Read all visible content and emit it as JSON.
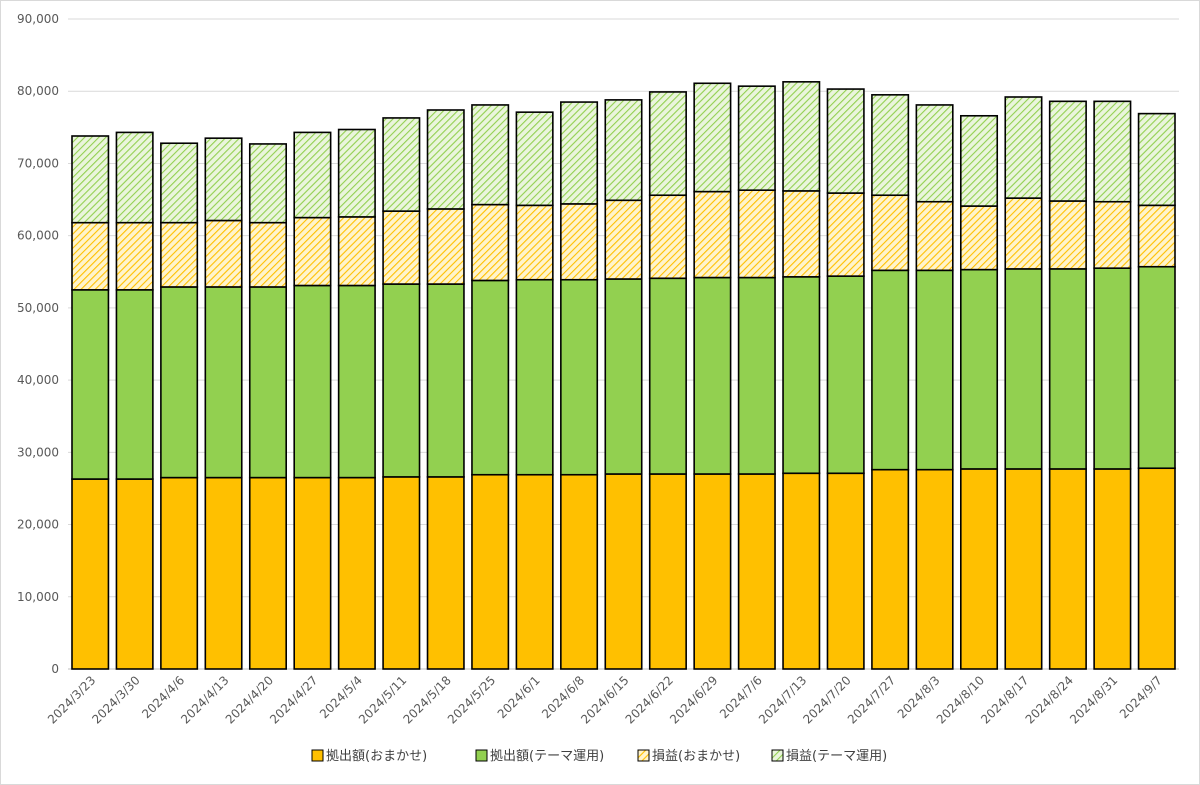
{
  "chart_data": {
    "type": "bar",
    "stacked": true,
    "title": "",
    "xlabel": "",
    "ylabel": "",
    "ylim": [
      0,
      90000
    ],
    "yticks": [
      0,
      10000,
      20000,
      30000,
      40000,
      50000,
      60000,
      70000,
      80000,
      90000
    ],
    "ytick_labels": [
      "0",
      "10,000",
      "20,000",
      "30,000",
      "40,000",
      "50,000",
      "60,000",
      "70,000",
      "80,000",
      "90,000"
    ],
    "grid": true,
    "legend_position": "bottom",
    "categories": [
      "2024/3/23",
      "2024/3/30",
      "2024/4/6",
      "2024/4/13",
      "2024/4/20",
      "2024/4/27",
      "2024/5/4",
      "2024/5/11",
      "2024/5/18",
      "2024/5/25",
      "2024/6/1",
      "2024/6/8",
      "2024/6/15",
      "2024/6/22",
      "2024/6/29",
      "2024/7/6",
      "2024/7/13",
      "2024/7/20",
      "2024/7/27",
      "2024/8/3",
      "2024/8/10",
      "2024/8/17",
      "2024/8/24",
      "2024/8/31",
      "2024/9/7"
    ],
    "series": [
      {
        "name": "拠出額(おまかせ)",
        "color": "#FFC000",
        "pattern": "solid",
        "values": [
          26300,
          26300,
          26500,
          26500,
          26500,
          26500,
          26500,
          26600,
          26600,
          26900,
          26900,
          26900,
          27000,
          27000,
          27000,
          27000,
          27100,
          27100,
          27600,
          27600,
          27700,
          27700,
          27700,
          27700,
          27800
        ]
      },
      {
        "name": "拠出額(テーマ運用)",
        "color": "#92D050",
        "pattern": "solid",
        "values": [
          26200,
          26200,
          26400,
          26400,
          26400,
          26600,
          26600,
          26700,
          26700,
          26900,
          27000,
          27000,
          27000,
          27100,
          27200,
          27200,
          27200,
          27300,
          27600,
          27600,
          27600,
          27700,
          27700,
          27800,
          27900
        ]
      },
      {
        "name": "損益(おまかせ)",
        "color": "#FFC000",
        "pattern": "hatch",
        "values": [
          9300,
          9300,
          8900,
          9200,
          8900,
          9400,
          9500,
          10100,
          10400,
          10500,
          10300,
          10500,
          10900,
          11500,
          11900,
          12100,
          11900,
          11500,
          10400,
          9500,
          8800,
          9800,
          9400,
          9200,
          8500
        ]
      },
      {
        "name": "損益(テーマ運用)",
        "color": "#92D050",
        "pattern": "hatch",
        "values": [
          12000,
          12500,
          11000,
          11400,
          10900,
          11800,
          12100,
          12900,
          13700,
          13800,
          12900,
          14100,
          13900,
          14300,
          15000,
          14400,
          15100,
          14400,
          13900,
          13400,
          12500,
          14000,
          13800,
          13900,
          12700
        ]
      }
    ]
  }
}
